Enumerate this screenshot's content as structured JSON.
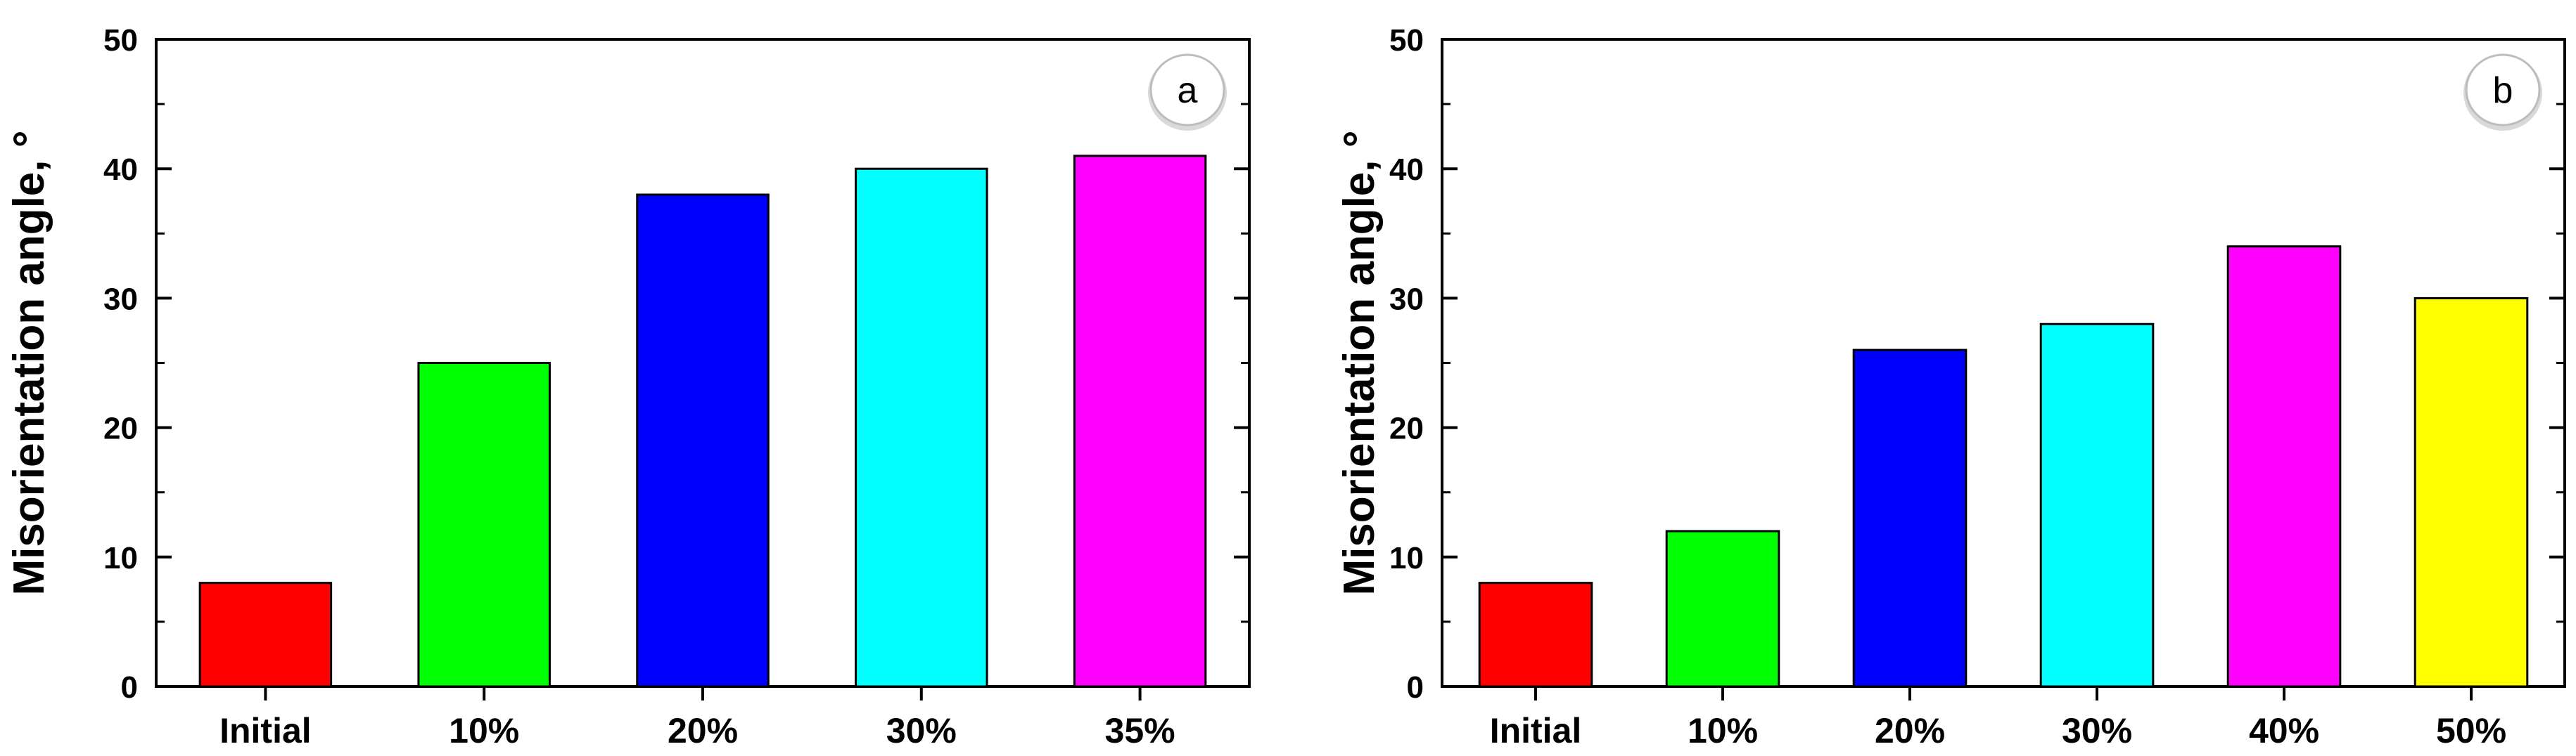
{
  "chart_data": [
    {
      "type": "bar",
      "panel_label": "a",
      "ylabel": "Misorientation angle, °",
      "ylim": [
        0,
        50
      ],
      "yticks": [
        0,
        10,
        20,
        30,
        40,
        50
      ],
      "categories": [
        "Initial",
        "10%",
        "20%",
        "30%",
        "35%"
      ],
      "values": [
        8,
        25,
        38,
        40,
        41
      ],
      "colors": [
        "#ff0000",
        "#00ff00",
        "#0000ff",
        "#00ffff",
        "#ff00ff"
      ],
      "grid": false,
      "legend": "none"
    },
    {
      "type": "bar",
      "panel_label": "b",
      "ylabel": "Misorientation angle, °",
      "ylim": [
        0,
        50
      ],
      "yticks": [
        0,
        10,
        20,
        30,
        40,
        50
      ],
      "categories": [
        "Initial",
        "10%",
        "20%",
        "30%",
        "40%",
        "50%"
      ],
      "values": [
        8,
        12,
        26,
        28,
        34,
        30
      ],
      "colors": [
        "#ff0000",
        "#00ff00",
        "#0000ff",
        "#00ffff",
        "#ff00ff",
        "#ffff00"
      ],
      "grid": false,
      "legend": "none"
    }
  ]
}
